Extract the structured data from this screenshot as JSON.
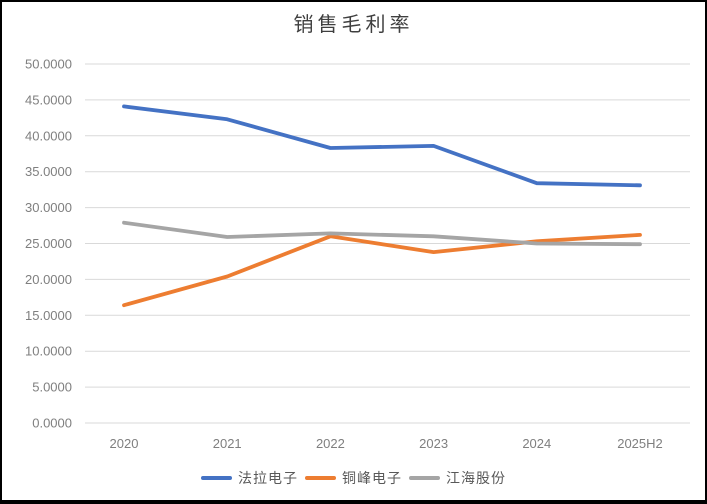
{
  "chart_data": {
    "type": "line",
    "title": "销售毛利率",
    "categories": [
      "2020",
      "2021",
      "2022",
      "2023",
      "2024",
      "2025H2"
    ],
    "series": [
      {
        "name": "法拉电子",
        "color": "#4472C4",
        "values": [
          44.1,
          42.3,
          38.3,
          38.6,
          33.4,
          33.1
        ]
      },
      {
        "name": "铜峰电子",
        "color": "#ED7D31",
        "values": [
          16.4,
          20.4,
          26.0,
          23.8,
          25.3,
          26.2
        ]
      },
      {
        "name": "江海股份",
        "color": "#A5A5A5",
        "values": [
          27.9,
          25.9,
          26.4,
          26.0,
          25.0,
          24.9
        ]
      }
    ],
    "xlabel": "",
    "ylabel": "",
    "ylim": [
      0,
      50
    ],
    "ytick_step": 5,
    "ytick_decimals": 4,
    "grid": "horizontal",
    "legend_position": "bottom",
    "style": {
      "grid_color": "#D9D9D9",
      "tick_label_color": "#7F7F7F",
      "title_color": "#3F3F3F",
      "legend_text_color": "#595959",
      "background": "#FFFFFF",
      "frame_color": "#000000"
    }
  }
}
